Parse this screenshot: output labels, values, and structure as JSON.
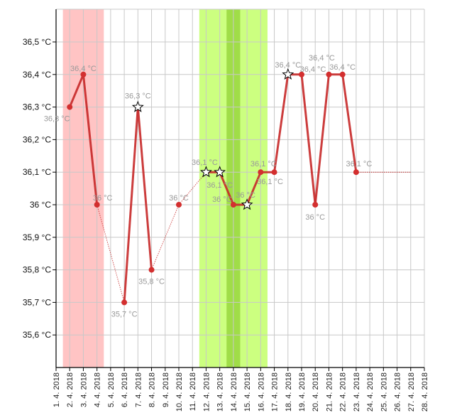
{
  "chart_data": {
    "type": "line",
    "title": "",
    "xlabel": "",
    "ylabel": "",
    "ylim": [
      35.5,
      36.6
    ],
    "grid": true,
    "y_ticks": [
      {
        "value": 36.5,
        "label": "36,5 °C"
      },
      {
        "value": 36.4,
        "label": "36,4 °C"
      },
      {
        "value": 36.3,
        "label": "36,3 °C"
      },
      {
        "value": 36.2,
        "label": "36,2 °C"
      },
      {
        "value": 36.1,
        "label": "36,1 °C"
      },
      {
        "value": 36.0,
        "label": "36 °C"
      },
      {
        "value": 35.9,
        "label": "35,9 °C"
      },
      {
        "value": 35.8,
        "label": "35,8 °C"
      },
      {
        "value": 35.7,
        "label": "35,7 °C"
      },
      {
        "value": 35.6,
        "label": "35,6 °C"
      }
    ],
    "categories": [
      "1. 4. 2018",
      "2. 4. 2018",
      "3. 4. 2018",
      "4. 4. 2018",
      "5. 4. 2018",
      "6. 4. 2018",
      "7. 4. 2018",
      "8. 4. 2018",
      "9. 4. 2018",
      "10. 4. 2018",
      "11. 4. 2018",
      "12. 4. 2018",
      "13. 4. 2018",
      "14. 4. 2018",
      "15. 4. 2018",
      "16. 4. 2018",
      "17. 4. 2018",
      "18. 4. 2018",
      "19. 4. 2018",
      "20. 4. 2018",
      "21. 4. 2018",
      "22. 4. 2018",
      "23. 4. 2018",
      "24. 4. 2018",
      "25. 4. 2018",
      "26. 4. 2018",
      "27. 4. 2018",
      "28. 4. 2018"
    ],
    "series": [
      {
        "name": "temperature",
        "color": "#c62828",
        "points": [
          {
            "day": 2,
            "value": 36.3,
            "label": "36,3 °C",
            "marker": "dot"
          },
          {
            "day": 3,
            "value": 36.4,
            "label": "36,4 °C",
            "marker": "dot"
          },
          {
            "day": 4,
            "value": 36.0,
            "label": "36 °C",
            "marker": "dot"
          },
          {
            "day": 6,
            "value": 35.7,
            "label": "35,7 °C",
            "marker": "dot"
          },
          {
            "day": 7,
            "value": 36.3,
            "label": "36,3 °C",
            "marker": "star"
          },
          {
            "day": 8,
            "value": 35.8,
            "label": "35,8 °C",
            "marker": "dot"
          },
          {
            "day": 10,
            "value": 36.0,
            "label": "36 °C",
            "marker": "dot"
          },
          {
            "day": 12,
            "value": 36.1,
            "label": "36,1 °C",
            "marker": "star"
          },
          {
            "day": 13,
            "value": 36.1,
            "label": "36,1 °C",
            "marker": "star"
          },
          {
            "day": 14,
            "value": 36.0,
            "label": "36 °C",
            "marker": "dot"
          },
          {
            "day": 15,
            "value": 36.0,
            "label": "36 °C",
            "marker": "star"
          },
          {
            "day": 16,
            "value": 36.1,
            "label": "36,1 °C",
            "marker": "dot"
          },
          {
            "day": 17,
            "value": 36.1,
            "label": "36,1 °C",
            "marker": "dot"
          },
          {
            "day": 18,
            "value": 36.4,
            "label": "36,4 °C",
            "marker": "star"
          },
          {
            "day": 19,
            "value": 36.4,
            "label": "36,4 °C",
            "marker": "dot"
          },
          {
            "day": 20,
            "value": 36.0,
            "label": "36 °C",
            "marker": "dot"
          },
          {
            "day": 21,
            "value": 36.4,
            "label": "36,4 °C",
            "marker": "dot"
          },
          {
            "day": 22,
            "value": 36.4,
            "label": "36,4 °C",
            "marker": "dot"
          },
          {
            "day": 23,
            "value": 36.1,
            "label": "36,1 °C",
            "marker": "dot"
          }
        ]
      },
      {
        "name": "projection",
        "color": "#c62828",
        "points": [
          {
            "day": 23,
            "value": 36.1
          },
          {
            "day": 27,
            "value": 36.1
          }
        ]
      }
    ],
    "bands": [
      {
        "name": "menstruation",
        "from_day": 1.5,
        "to_day": 4.5,
        "color": "#ffc4c4"
      },
      {
        "name": "fertile-window",
        "from_day": 11.5,
        "to_day": 16.5,
        "color": "#ccff80"
      },
      {
        "name": "ovulation",
        "from_day": 13.5,
        "to_day": 14.5,
        "color": "#a0dd48"
      }
    ]
  }
}
